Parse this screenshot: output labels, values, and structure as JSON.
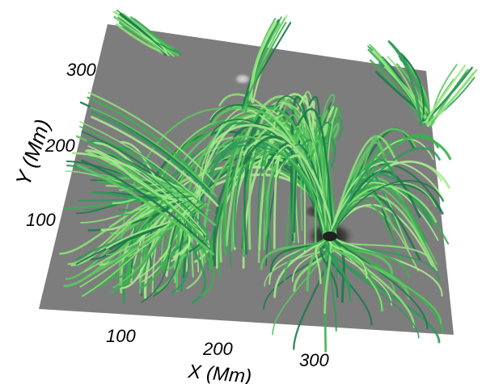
{
  "figure": {
    "x_axis": {
      "label": "X (Mm)",
      "ticks": [
        "100",
        "200",
        "300"
      ]
    },
    "y_axis": {
      "label": "Y (Mm)",
      "ticks": [
        "100",
        "200",
        "300"
      ]
    },
    "colors": {
      "magnetogram_gray": "#7d7d7d",
      "field_line_light": "#8ee07a",
      "field_line_mid": "#3cb050",
      "field_line_dark": "#1f7a4a",
      "negative_polarity": "#202020",
      "positive_polarity": "#e8e8e8"
    }
  }
}
